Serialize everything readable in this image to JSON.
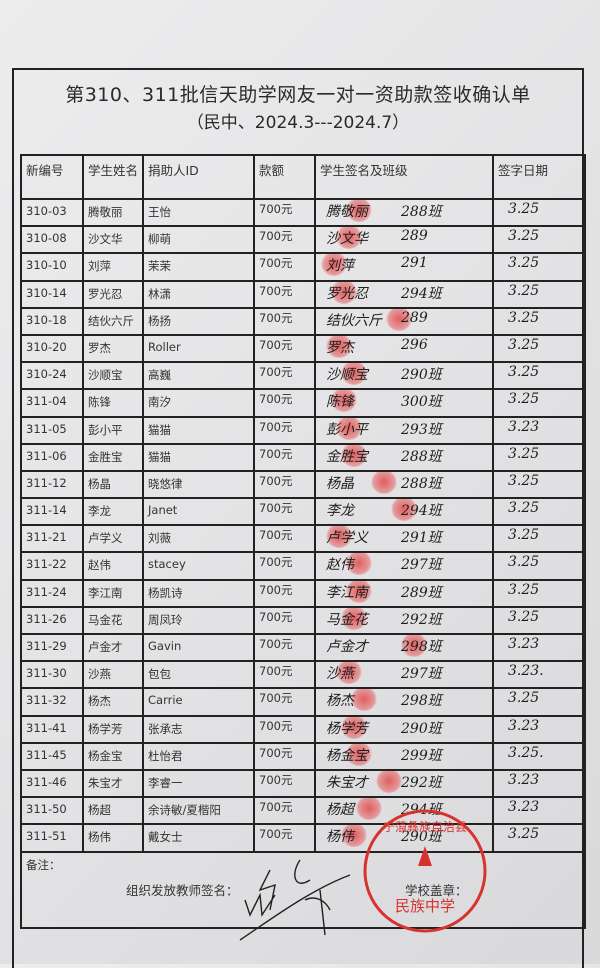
{
  "title": "第310、311批信天助学网友一对一资助款签收确认单",
  "subtitle": "（民中、2024.3---2024.7）",
  "columns": [
    "新编号",
    "学生姓名",
    "捐助人ID",
    "款额",
    "学生签名及班级",
    "签字日期"
  ],
  "rows": [
    {
      "id": "310-03",
      "student": "腾敬丽",
      "donor": "王怡",
      "amount": "700元",
      "sig": "腾敬丽",
      "class": "288班",
      "date": "3.25"
    },
    {
      "id": "310-08",
      "student": "沙文华",
      "donor": "柳萌",
      "amount": "700元",
      "sig": "沙文华",
      "class": "289",
      "date": "3.25"
    },
    {
      "id": "310-10",
      "student": "刘萍",
      "donor": "茉茉",
      "amount": "700元",
      "sig": "刘萍",
      "class": "291",
      "date": "3.25"
    },
    {
      "id": "310-14",
      "student": "罗光忍",
      "donor": "林潇",
      "amount": "700元",
      "sig": "罗光忍",
      "class": "294班",
      "date": "3.25"
    },
    {
      "id": "310-18",
      "student": "结伙六斤",
      "donor": "杨扬",
      "amount": "700元",
      "sig": "结伙六斤",
      "class": "289",
      "date": "3.25"
    },
    {
      "id": "310-20",
      "student": "罗杰",
      "donor": "Roller",
      "amount": "700元",
      "sig": "罗杰",
      "class": "296",
      "date": "3.25"
    },
    {
      "id": "310-24",
      "student": "沙顺宝",
      "donor": "高巍",
      "amount": "700元",
      "sig": "沙顺宝",
      "class": "290班",
      "date": "3.25"
    },
    {
      "id": "311-04",
      "student": "陈锋",
      "donor": "南汐",
      "amount": "700元",
      "sig": "陈锋",
      "class": "300班",
      "date": "3.25"
    },
    {
      "id": "311-05",
      "student": "彭小平",
      "donor": "猫猫",
      "amount": "700元",
      "sig": "彭小平",
      "class": "293班",
      "date": "3.23"
    },
    {
      "id": "311-06",
      "student": "金胜宝",
      "donor": "猫猫",
      "amount": "700元",
      "sig": "金胜宝",
      "class": "288班",
      "date": "3.25"
    },
    {
      "id": "311-12",
      "student": "杨晶",
      "donor": "晓悠律",
      "amount": "700元",
      "sig": "杨晶",
      "class": "288班",
      "date": "3.25"
    },
    {
      "id": "311-14",
      "student": "李龙",
      "donor": "Janet",
      "amount": "700元",
      "sig": "李龙",
      "class": "294班",
      "date": "3.25"
    },
    {
      "id": "311-21",
      "student": "卢学义",
      "donor": "刘薇",
      "amount": "700元",
      "sig": "卢学义",
      "class": "291班",
      "date": "3.25"
    },
    {
      "id": "311-22",
      "student": "赵伟",
      "donor": "stacey",
      "amount": "700元",
      "sig": "赵伟",
      "class": "297班",
      "date": "3.25"
    },
    {
      "id": "311-24",
      "student": "李江南",
      "donor": "杨凯诗",
      "amount": "700元",
      "sig": "李江南",
      "class": "289班",
      "date": "3.25"
    },
    {
      "id": "311-26",
      "student": "马金花",
      "donor": "周凤玲",
      "amount": "700元",
      "sig": "马金花",
      "class": "292班",
      "date": "3.25"
    },
    {
      "id": "311-29",
      "student": "卢金才",
      "donor": "Gavin",
      "amount": "700元",
      "sig": "卢金才",
      "class": "298班",
      "date": "3.23"
    },
    {
      "id": "311-30",
      "student": "沙燕",
      "donor": "包包",
      "amount": "700元",
      "sig": "沙燕",
      "class": "297班",
      "date": "3.23."
    },
    {
      "id": "311-32",
      "student": "杨杰",
      "donor": "Carrie",
      "amount": "700元",
      "sig": "杨杰",
      "class": "298班",
      "date": "3.25"
    },
    {
      "id": "311-41",
      "student": "杨学芳",
      "donor": "张承志",
      "amount": "700元",
      "sig": "杨学芳",
      "class": "290班",
      "date": "3.23"
    },
    {
      "id": "311-45",
      "student": "杨金宝",
      "donor": "杜怡君",
      "amount": "700元",
      "sig": "杨金宝",
      "class": "299班",
      "date": "3.25."
    },
    {
      "id": "311-46",
      "student": "朱宝才",
      "donor": "李睿一",
      "amount": "700元",
      "sig": "朱宝才",
      "class": "292班",
      "date": "3.23"
    },
    {
      "id": "311-50",
      "student": "杨超",
      "donor": "余诗敏/夏楷阳",
      "amount": "700元",
      "sig": "杨超",
      "class": "294班",
      "date": "3.23"
    },
    {
      "id": "311-51",
      "student": "杨伟",
      "donor": "戴女士",
      "amount": "700元",
      "sig": "杨伟",
      "class": "290班",
      "date": "3.25"
    }
  ],
  "notes_label": "备注：",
  "teacher_sign_label": "组织发放教师签名：",
  "school_stamp_label": "学校盖章：",
  "stamp_text": "云南省宁蒗彝族自治县民族中学",
  "colors": {
    "ink": "#1d1d1d",
    "stamp": "#d8322f",
    "fingerprint": "#e04444"
  }
}
